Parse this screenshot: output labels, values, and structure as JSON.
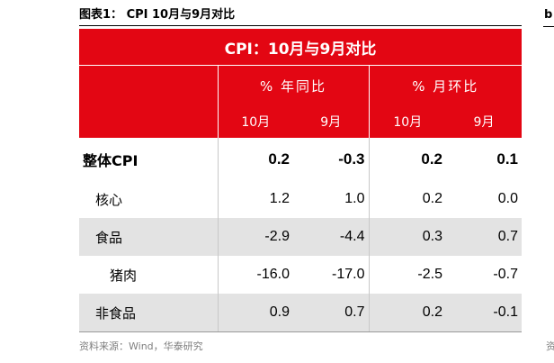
{
  "caption": "图表1：  CPI 10月与9月对比",
  "table": {
    "title": "CPI：10月与9月对比",
    "groups": [
      "% 年同比",
      "% 月环比"
    ],
    "months": [
      "10月",
      "9月",
      "10月",
      "9月"
    ],
    "rows": [
      {
        "label": "整体CPI",
        "values": [
          "0.2",
          "-0.3",
          "0.2",
          "0.1"
        ]
      },
      {
        "label": "核心",
        "values": [
          "1.2",
          "1.0",
          "0.2",
          "0.0"
        ]
      },
      {
        "label": "食品",
        "values": [
          "-2.9",
          "-4.4",
          "0.3",
          "0.7"
        ]
      },
      {
        "label": "猪肉",
        "values": [
          "-16.0",
          "-17.0",
          "-2.5",
          "-0.7"
        ]
      },
      {
        "label": "非食品",
        "values": [
          "0.9",
          "0.7",
          "0.2",
          "-0.1"
        ]
      }
    ]
  },
  "source": "资料来源：Wind，华泰研究",
  "colors": {
    "header_bg": "#e30613",
    "shade": "#e3e3e3",
    "source_text": "#7f7f7f"
  }
}
